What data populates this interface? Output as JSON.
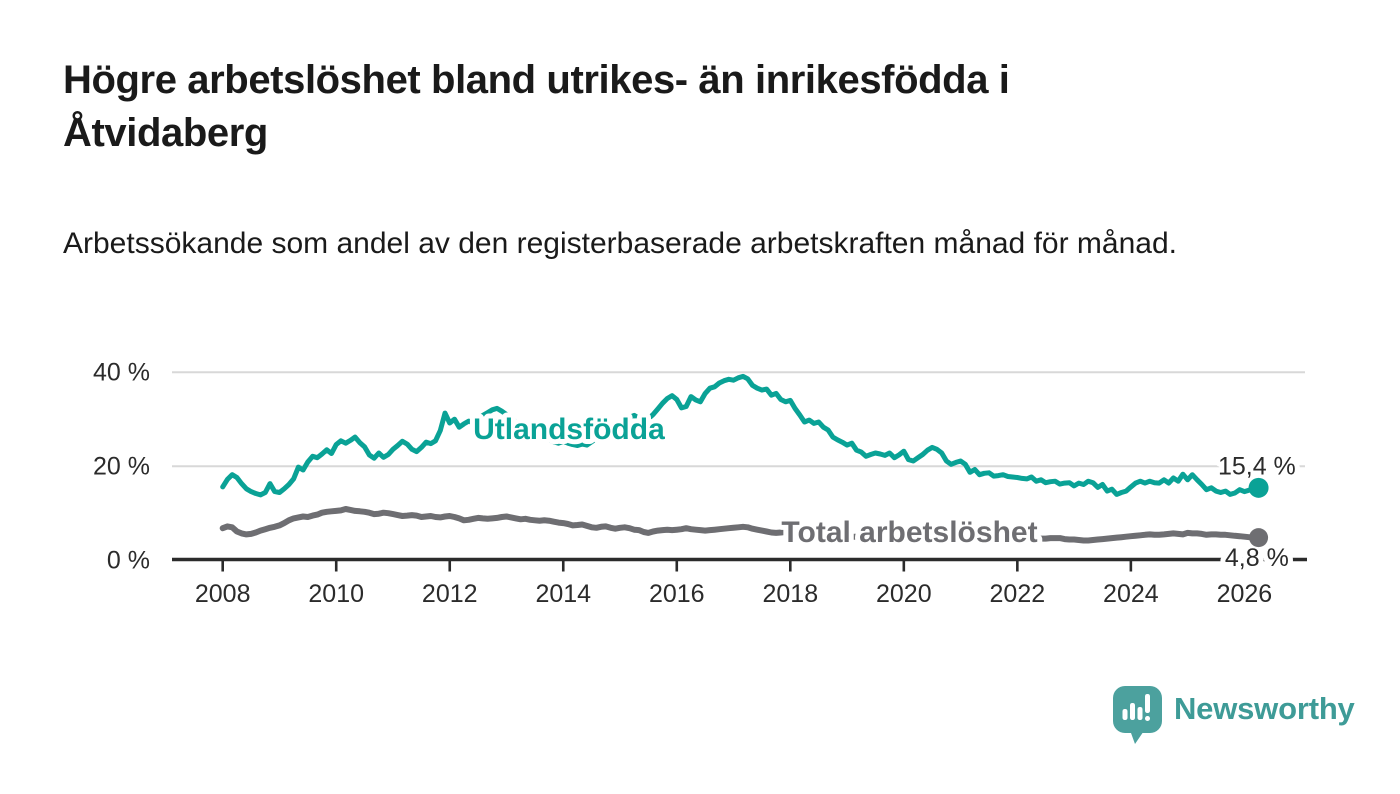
{
  "header": {
    "title": "Högre arbetslöshet bland utrikes- än inrikesfödda i Åtvidaberg",
    "subtitle": "Arbetssökande som andel av den registerbaserade arbetskraften månad för månad."
  },
  "branding": {
    "wordmark": "Newsworthy",
    "icon": "newsworthy-speech-bubble-bar-chart-icon",
    "icon_color": "#4CA19E",
    "wordmark_color": "#3E9B97"
  },
  "colors": {
    "background": "#ffffff",
    "title_text": "#1a1a1a",
    "axis": "#2b2b2b",
    "gridline": "#d8d8d8",
    "value_label_text": "#2b2b2b",
    "series_foreign_born": "#0AA296",
    "series_total": "#6E6E72"
  },
  "chart_data": {
    "type": "line",
    "grid": "horizontal-only",
    "x_axis": {
      "unit": "year (monthly data)",
      "start_year": 2008,
      "interval": "month",
      "ticks": [
        2008,
        2010,
        2012,
        2014,
        2016,
        2018,
        2020,
        2022,
        2024,
        2026
      ]
    },
    "y_axis": {
      "unit": "%",
      "range": [
        0,
        42
      ],
      "ticks": [
        {
          "value": 0,
          "label": "0 %"
        },
        {
          "value": 20,
          "label": "20 %"
        },
        {
          "value": 40,
          "label": "40 %"
        }
      ],
      "grid_values": [
        20,
        40
      ]
    },
    "series": [
      {
        "name": "Utlandsfödda",
        "color": "#0AA296",
        "line_width": 5,
        "label": {
          "text": "Utlandsfödda",
          "x": 2014.1,
          "y": 27.9
        },
        "end_label": {
          "text": "15,4 %",
          "x": 2026.22,
          "y": 20.0
        },
        "end_value": 15.4,
        "values": [
          15.6,
          17.2,
          18.2,
          17.6,
          16.3,
          15.2,
          14.6,
          14.2,
          13.9,
          14.4,
          16.3,
          14.6,
          14.4,
          15.2,
          16.1,
          17.3,
          19.8,
          19.2,
          20.9,
          22.1,
          21.8,
          22.6,
          23.5,
          22.7,
          24.6,
          25.4,
          24.9,
          25.5,
          26.2,
          25.0,
          24.1,
          22.4,
          21.7,
          22.8,
          21.9,
          22.5,
          23.6,
          24.4,
          25.3,
          24.7,
          23.6,
          23.1,
          24.0,
          25.1,
          24.8,
          25.4,
          27.6,
          31.3,
          29.2,
          30.0,
          28.3,
          29.0,
          29.6,
          29.2,
          30.1,
          30.8,
          31.4,
          32.0,
          32.3,
          31.7,
          31.0,
          30.2,
          29.4,
          28.8,
          28.2,
          27.6,
          27.0,
          26.5,
          26.0,
          25.6,
          25.2,
          24.9,
          25.3,
          24.9,
          24.6,
          24.4,
          24.7,
          24.5,
          25.2,
          25.9,
          26.6,
          27.3,
          28.0,
          28.6,
          29.2,
          29.8,
          30.4,
          30.8,
          30.2,
          29.6,
          30.1,
          31.0,
          32.2,
          33.4,
          34.4,
          35.0,
          34.2,
          32.4,
          32.7,
          34.8,
          34.1,
          33.7,
          35.5,
          36.6,
          36.9,
          37.7,
          38.2,
          38.5,
          38.3,
          38.8,
          39.1,
          38.6,
          37.2,
          36.6,
          36.2,
          36.4,
          35.1,
          35.5,
          34.2,
          33.7,
          34.0,
          32.3,
          30.9,
          29.4,
          29.8,
          29.1,
          29.4,
          28.3,
          27.7,
          26.2,
          25.6,
          25.1,
          24.5,
          24.9,
          23.4,
          23.0,
          22.1,
          22.5,
          22.8,
          22.6,
          22.3,
          22.8,
          21.8,
          22.4,
          23.2,
          21.4,
          21.1,
          21.8,
          22.5,
          23.4,
          24.0,
          23.6,
          22.8,
          21.1,
          20.4,
          20.8,
          21.1,
          20.4,
          18.7,
          19.3,
          18.2,
          18.5,
          18.6,
          17.9,
          18.0,
          18.2,
          17.8,
          17.7,
          17.6,
          17.4,
          17.3,
          17.7,
          16.8,
          17.1,
          16.5,
          16.7,
          16.8,
          16.2,
          16.4,
          16.5,
          15.8,
          16.4,
          16.1,
          16.8,
          16.5,
          15.5,
          16.1,
          14.7,
          15.1,
          14.0,
          14.4,
          14.7,
          15.6,
          16.4,
          16.8,
          16.4,
          16.8,
          16.5,
          16.4,
          17.1,
          16.4,
          17.5,
          16.8,
          18.3,
          17.1,
          18.2,
          17.1,
          16.1,
          15.0,
          15.4,
          14.7,
          14.4,
          14.7,
          14.0,
          14.3,
          15.0,
          14.6,
          14.9,
          15.2,
          15.4
        ]
      },
      {
        "name": "Total arbetslöshet",
        "color": "#6E6E72",
        "line_width": 6,
        "label": {
          "text": "Total arbetslöshet",
          "x": 2020.1,
          "y": 6.0
        },
        "end_label": {
          "text": "4,8 %",
          "x": 2026.22,
          "y": 0.55
        },
        "end_value": 4.8,
        "values": [
          6.8,
          7.2,
          7.0,
          6.1,
          5.7,
          5.5,
          5.6,
          5.9,
          6.3,
          6.6,
          6.9,
          7.1,
          7.4,
          7.9,
          8.5,
          8.9,
          9.1,
          9.3,
          9.2,
          9.5,
          9.7,
          10.1,
          10.3,
          10.4,
          10.5,
          10.6,
          10.9,
          10.7,
          10.5,
          10.4,
          10.3,
          10.1,
          9.8,
          9.9,
          10.1,
          10.0,
          9.8,
          9.6,
          9.4,
          9.5,
          9.6,
          9.5,
          9.2,
          9.3,
          9.4,
          9.2,
          9.1,
          9.3,
          9.4,
          9.2,
          8.9,
          8.5,
          8.6,
          8.8,
          9.0,
          8.9,
          8.8,
          8.9,
          9.0,
          9.2,
          9.3,
          9.1,
          8.9,
          8.7,
          8.8,
          8.6,
          8.5,
          8.4,
          8.5,
          8.4,
          8.2,
          8.0,
          7.9,
          7.7,
          7.4,
          7.5,
          7.6,
          7.3,
          7.0,
          6.9,
          7.1,
          7.2,
          6.9,
          6.7,
          6.9,
          7.0,
          6.8,
          6.5,
          6.4,
          6.0,
          5.8,
          6.1,
          6.3,
          6.4,
          6.5,
          6.4,
          6.5,
          6.6,
          6.8,
          6.6,
          6.5,
          6.4,
          6.3,
          6.4,
          6.5,
          6.6,
          6.7,
          6.8,
          6.9,
          7.0,
          7.1,
          7.0,
          6.7,
          6.5,
          6.3,
          6.1,
          5.9,
          5.8,
          5.9,
          6.0,
          5.8,
          5.7,
          5.6,
          5.5,
          5.4,
          5.4,
          5.3,
          5.2,
          5.2,
          5.1,
          5.1,
          5.1,
          5.1,
          5.0,
          5.0,
          4.9,
          4.9,
          4.9,
          4.9,
          4.9,
          4.9,
          5.0,
          5.0,
          5.1,
          5.1,
          5.2,
          5.5,
          5.8,
          5.9,
          5.9,
          5.8,
          5.7,
          5.6,
          5.5,
          5.4,
          5.3,
          5.3,
          5.2,
          5.1,
          5.0,
          4.9,
          4.9,
          4.8,
          4.8,
          4.8,
          4.7,
          4.7,
          4.7,
          4.7,
          4.6,
          4.6,
          4.6,
          4.6,
          4.6,
          4.6,
          4.7,
          4.7,
          4.7,
          4.5,
          4.4,
          4.4,
          4.3,
          4.2,
          4.2,
          4.3,
          4.4,
          4.5,
          4.6,
          4.7,
          4.8,
          4.9,
          5.0,
          5.1,
          5.2,
          5.3,
          5.4,
          5.5,
          5.4,
          5.4,
          5.5,
          5.6,
          5.7,
          5.6,
          5.5,
          5.8,
          5.7,
          5.7,
          5.6,
          5.4,
          5.5,
          5.5,
          5.4,
          5.4,
          5.3,
          5.2,
          5.1,
          5.0,
          4.9,
          4.9,
          4.8
        ]
      }
    ]
  }
}
